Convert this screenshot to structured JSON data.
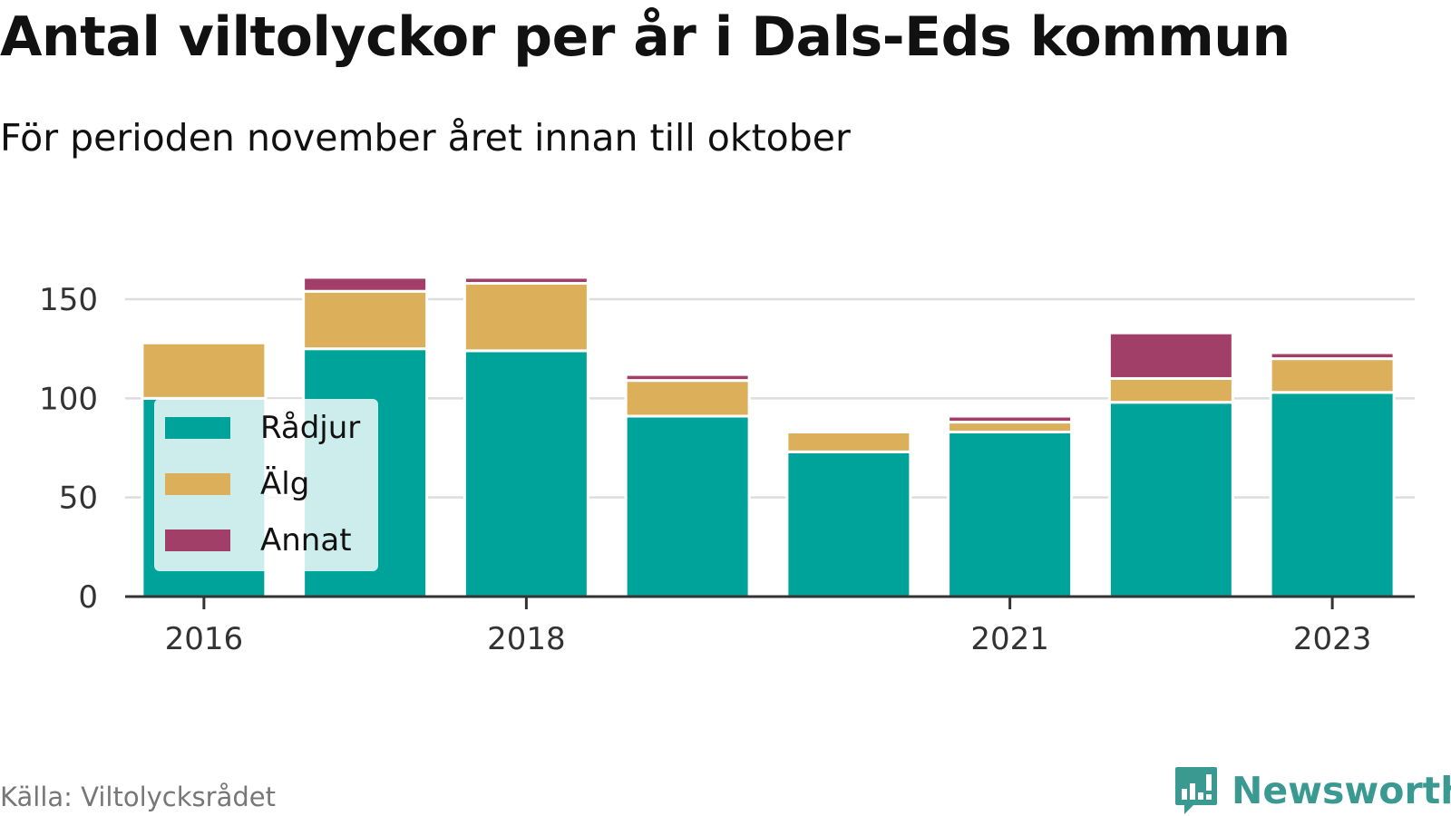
{
  "title": "Antal viltolyckor per år i Dals-Eds kommun",
  "subtitle": "För perioden november året innan till oktober",
  "source": "Källa: Viltolycksrådet",
  "brand": {
    "name": "Newsworthy",
    "icon": "bar-chart-speech-bubble-icon"
  },
  "colors": {
    "radjur": "#00a39a",
    "alg": "#dcaf5b",
    "annat": "#a23f69",
    "grid": "#dddddd",
    "axis": "#333333"
  },
  "legend": {
    "items": [
      {
        "label": "Rådjur",
        "color": "#00a39a"
      },
      {
        "label": "Älg",
        "color": "#dcaf5b"
      },
      {
        "label": "Annat",
        "color": "#a23f69"
      }
    ]
  },
  "chart_data": {
    "type": "bar",
    "stacked": true,
    "categories": [
      "2016",
      "2017",
      "2018",
      "2019",
      "2020",
      "2021",
      "2022",
      "2023"
    ],
    "xtick_labels": [
      "2016",
      "2018",
      "2021",
      "2023"
    ],
    "series": [
      {
        "name": "Rådjur",
        "values": [
          100,
          125,
          124,
          91,
          73,
          83,
          98,
          103
        ]
      },
      {
        "name": "Älg",
        "values": [
          28,
          29,
          34,
          18,
          10,
          5,
          12,
          17
        ]
      },
      {
        "name": "Annat",
        "values": [
          1,
          7,
          3,
          3,
          1,
          3,
          23,
          3
        ]
      }
    ],
    "yticks": [
      0,
      50,
      100,
      150
    ],
    "ylim": [
      0,
      165
    ],
    "grid": true,
    "legend_position": "left"
  }
}
